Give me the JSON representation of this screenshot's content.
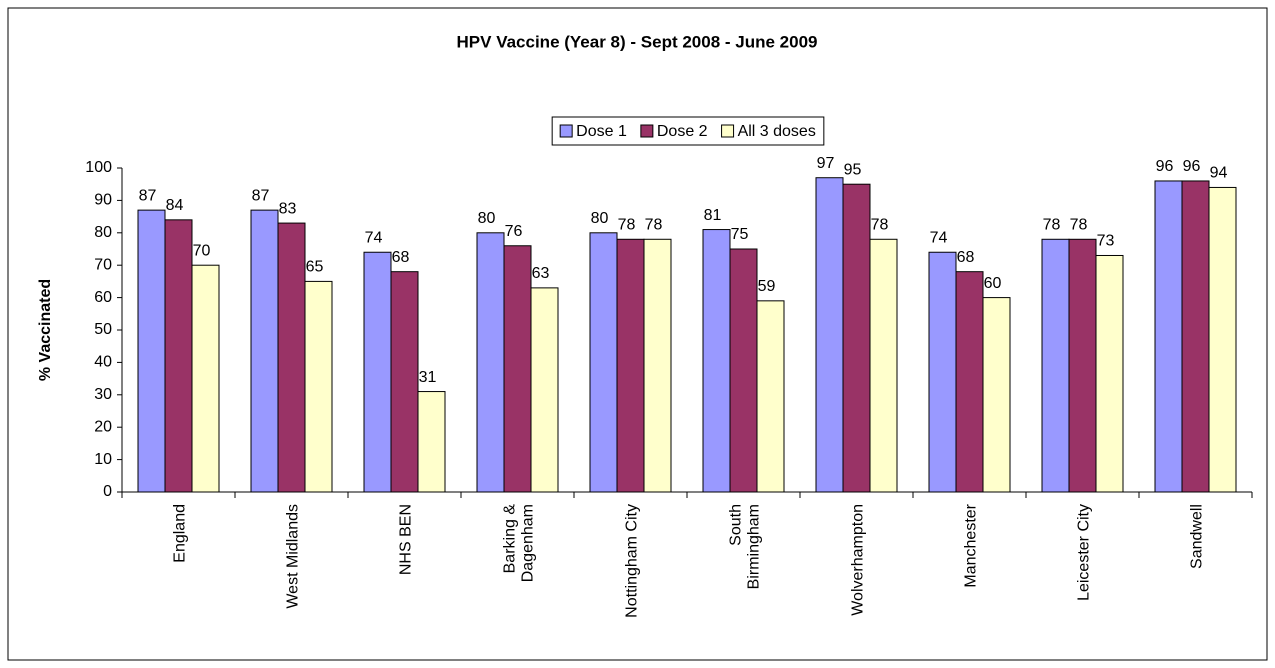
{
  "chart_data": {
    "type": "bar",
    "title": "HPV Vaccine (Year 8) - Sept 2008 - June 2009",
    "y_label": "% Vaccinated",
    "categories": [
      "England",
      "West Midlands",
      "NHS BEN",
      "Barking &\nDagenham",
      "Nottingham City",
      "South\nBirmingham",
      "Wolverhampton",
      "Manchester",
      "Leicester City",
      "Sandwell"
    ],
    "series": [
      {
        "name": "Dose 1",
        "color": "#9999ff",
        "values": [
          87,
          87,
          74,
          80,
          80,
          81,
          97,
          74,
          78,
          96
        ]
      },
      {
        "name": "Dose 2",
        "color": "#993366",
        "values": [
          84,
          83,
          68,
          76,
          78,
          75,
          95,
          68,
          78,
          96
        ]
      },
      {
        "name": "All 3 doses",
        "color": "#ffffcc",
        "values": [
          70,
          65,
          31,
          63,
          78,
          59,
          78,
          60,
          73,
          94
        ]
      }
    ],
    "ylim": [
      0,
      100
    ],
    "yticks": [
      0,
      10,
      20,
      30,
      40,
      50,
      60,
      70,
      80,
      90,
      100
    ],
    "grid": false,
    "legend": "top"
  }
}
